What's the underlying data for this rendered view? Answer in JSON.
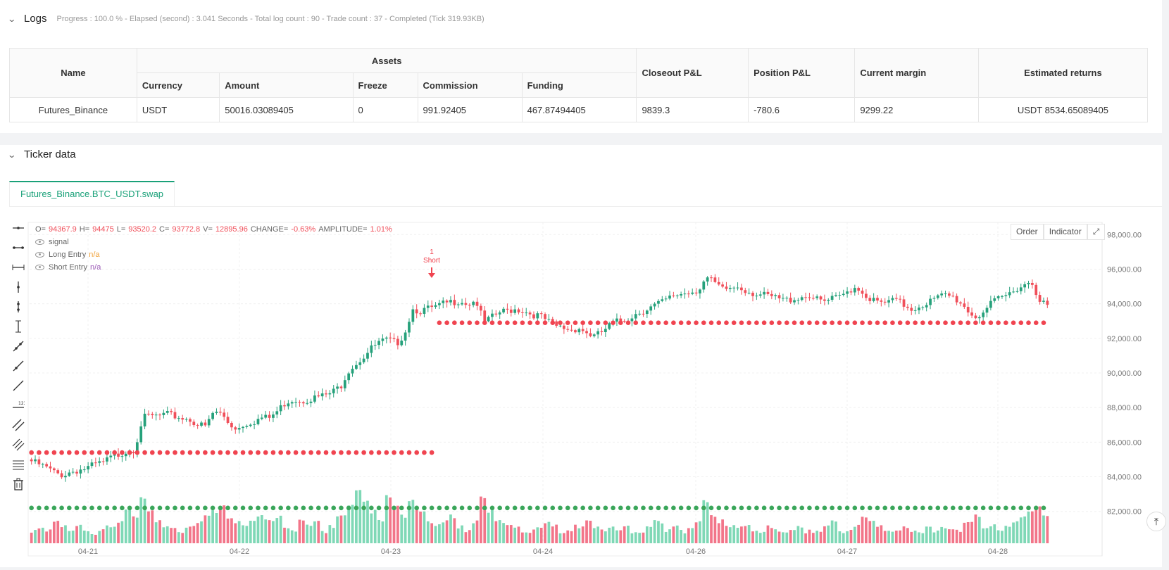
{
  "logs": {
    "title": "Logs",
    "meta": "Progress : 100.0 % - Elapsed (second) : 3.041  Seconds - Total log count : 90 - Trade count : 37 - Completed (Tick 319.93KB)"
  },
  "assets_table": {
    "headers": {
      "name": "Name",
      "assets": "Assets",
      "currency": "Currency",
      "amount": "Amount",
      "freeze": "Freeze",
      "commission": "Commission",
      "funding": "Funding",
      "closeout_pnl": "Closeout P&L",
      "position_pnl": "Position P&L",
      "current_margin": "Current margin",
      "estimated_returns": "Estimated returns"
    },
    "row": {
      "name": "Futures_Binance",
      "currency": "USDT",
      "amount": "50016.03089405",
      "freeze": "0",
      "commission": "991.92405",
      "funding": "467.87494405",
      "closeout_pnl": "9839.3",
      "position_pnl": "-780.6",
      "current_margin": "9299.22",
      "estimated_returns": "USDT 8534.65089405"
    }
  },
  "ticker": {
    "title": "Ticker data",
    "tab": "Futures_Binance.BTC_USDT.swap",
    "buttons": {
      "order": "Order",
      "indicator": "Indicator"
    }
  },
  "legend": {
    "o_label": "O=",
    "o_val": "94367.9",
    "h_label": "H=",
    "h_val": "94475",
    "l_label": "L=",
    "l_val": "93520.2",
    "c_label": "C=",
    "c_val": "93772.8",
    "v_label": "V=",
    "v_val": "12895.96",
    "change_label": "CHANGE=",
    "change_val": "-0.63%",
    "amp_label": "AMPLITUDE=",
    "amp_val": "1.01%",
    "signal": "signal",
    "long_entry": "Long Entry",
    "long_val": "n/a",
    "short_entry": "Short Entry",
    "short_val": "n/a"
  },
  "annotation": {
    "count": "1",
    "label": "Short"
  },
  "colors": {
    "up": "#26a17b",
    "down": "#f04f5a",
    "vol_up": "#7fd8b6",
    "vol_down": "#f27589",
    "line_red": "#f04450",
    "line_green": "#3aa65a",
    "accent": "#1aa179"
  },
  "chart_data": {
    "type": "candlestick",
    "y_ticks": [
      "98,000.00",
      "96,000.00",
      "94,000.00",
      "92,000.00",
      "90,000.00",
      "88,000.00",
      "86,000.00",
      "84,000.00",
      "82,000.00"
    ],
    "ylim": [
      81500,
      98500
    ],
    "x_ticks": [
      "04-21",
      "04-22",
      "04-23",
      "04-24",
      "04-26",
      "04-27",
      "04-28"
    ],
    "red_dotted_levels": [
      {
        "from_bar": 0,
        "to_bar": 108,
        "value": 85400
      },
      {
        "from_bar": 108,
        "to_bar": 270,
        "value": 92900
      }
    ],
    "green_dotted_level": {
      "from_bar": 0,
      "to_bar": 270,
      "value": 82200
    },
    "price_path": [
      84900,
      84700,
      84500,
      84200,
      84100,
      84300,
      84400,
      84500,
      84700,
      84800,
      85100,
      85300,
      85500,
      85600,
      87400,
      87500,
      87500,
      87600,
      87500,
      87400,
      87300,
      87000,
      86900,
      87800,
      87600,
      87000,
      86800,
      87100,
      87200,
      87400,
      87400,
      87800,
      88300,
      88500,
      88400,
      88500,
      88600,
      88700,
      88900,
      89300,
      90200,
      90600,
      91000,
      91500,
      91800,
      91900,
      91700,
      92300,
      93700,
      93600,
      93700,
      93800,
      94000,
      94100,
      94200,
      94000,
      94200,
      92900,
      93200,
      93500,
      93600,
      93700,
      93600,
      93400,
      93300,
      93000,
      92700,
      92600,
      92500,
      92600,
      92300,
      92100,
      92400,
      92800,
      93000,
      93100,
      93400,
      93600,
      93800,
      94000,
      94200,
      94500,
      94600,
      94700,
      94800,
      95500,
      95200,
      94800,
      94900,
      95000,
      94800,
      94600,
      94500,
      94400,
      94300,
      94200,
      94300,
      94400,
      94500,
      94200,
      94100,
      94300,
      94400,
      94800,
      95000,
      94500,
      94200,
      94000,
      94100,
      94200,
      93900,
      93700,
      93900,
      94100,
      94300,
      94500,
      94400,
      94100,
      93600,
      93200,
      93600,
      94000,
      94300,
      94500,
      94900,
      95100,
      95300,
      94300,
      93800
    ],
    "volume_profile": [
      2,
      3,
      2,
      4,
      3,
      2,
      3,
      2,
      1,
      2,
      3,
      4,
      6,
      5,
      9,
      6,
      4,
      3,
      3,
      2,
      3,
      4,
      5,
      6,
      7,
      5,
      4,
      3,
      4,
      5,
      4,
      5,
      3,
      2,
      4,
      3,
      4,
      2,
      3,
      5,
      7,
      10,
      8,
      6,
      4,
      9,
      7,
      5,
      8,
      6,
      4,
      3,
      4,
      5,
      3,
      2,
      4,
      9,
      6,
      4,
      3,
      3,
      2,
      2,
      3,
      4,
      3,
      2,
      2,
      3,
      4,
      3,
      2,
      3,
      2,
      3,
      2,
      2,
      3,
      4,
      2,
      3,
      2,
      3,
      4,
      8,
      5,
      4,
      3,
      3,
      3,
      2,
      2,
      3,
      2,
      2,
      2,
      3,
      2,
      2,
      3,
      4,
      2,
      2,
      3,
      5,
      4,
      3,
      2,
      2,
      3,
      2,
      2,
      3,
      2,
      3,
      2,
      2,
      4,
      5,
      3,
      3,
      2,
      3,
      4,
      5,
      6,
      7,
      5
    ]
  }
}
